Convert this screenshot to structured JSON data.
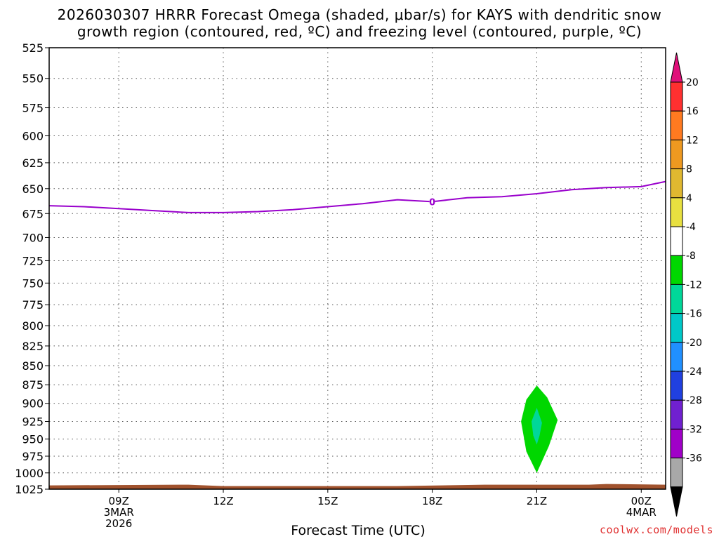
{
  "title_line1": "2026030307 HRRR Forecast Omega (shaded, μbar/s) for KAYS with dendritic snow",
  "title_line2": "growth region (contoured, red, ºC) and freezing level (contoured, purple, ºC)",
  "xaxis_title": "Forecast Time (UTC)",
  "credit": "coolwx.com/models",
  "chart_data": {
    "type": "area",
    "title": "2026030307 HRRR Forecast Omega (shaded, μbar/s) for KAYS with dendritic snow growth region (contoured, red, ºC) and freezing level (contoured, purple, ºC)",
    "xlabel": "Forecast Time (UTC)",
    "ylabel": "",
    "x_hours_range": [
      7,
      24.7
    ],
    "y_range_hpa": [
      525,
      1025
    ],
    "y_scale": "log-pressure (inverted)",
    "grid": true,
    "y_ticks": [
      "525",
      "550",
      "575",
      "600",
      "625",
      "650",
      "675",
      "700",
      "725",
      "750",
      "775",
      "800",
      "825",
      "850",
      "875",
      "900",
      "925",
      "950",
      "975",
      "1000",
      "1025"
    ],
    "x_ticks": [
      {
        "hour": 9,
        "label": "09Z",
        "sub1": "3MAR",
        "sub2": "2026"
      },
      {
        "hour": 12,
        "label": "12Z",
        "sub1": "",
        "sub2": ""
      },
      {
        "hour": 15,
        "label": "15Z",
        "sub1": "",
        "sub2": ""
      },
      {
        "hour": 18,
        "label": "18Z",
        "sub1": "",
        "sub2": ""
      },
      {
        "hour": 21,
        "label": "21Z",
        "sub1": "",
        "sub2": ""
      },
      {
        "hour": 24,
        "label": "00Z",
        "sub1": "4MAR",
        "sub2": ""
      }
    ],
    "freezing_level": {
      "color": "#9900cc",
      "label": "0",
      "label_hour": 18,
      "points": [
        [
          7,
          667
        ],
        [
          8,
          668
        ],
        [
          9,
          670
        ],
        [
          10,
          672
        ],
        [
          11,
          674
        ],
        [
          12,
          674
        ],
        [
          13,
          673
        ],
        [
          14,
          671
        ],
        [
          15,
          668
        ],
        [
          16,
          665
        ],
        [
          17,
          661
        ],
        [
          18,
          663
        ],
        [
          19,
          659
        ],
        [
          20,
          658
        ],
        [
          21,
          655
        ],
        [
          22,
          651
        ],
        [
          23,
          649
        ],
        [
          24,
          648
        ],
        [
          24.7,
          643
        ]
      ]
    },
    "omega_regions": [
      {
        "level": "-8 to -4",
        "color": "#00d700",
        "points": [
          [
            21,
            876
          ],
          [
            21.3,
            892
          ],
          [
            21.6,
            923
          ],
          [
            21.35,
            960
          ],
          [
            21,
            1000
          ],
          [
            20.7,
            968
          ],
          [
            20.55,
            925
          ],
          [
            20.7,
            895
          ]
        ]
      },
      {
        "level": "-12 to -8",
        "color": "#00d799",
        "points": [
          [
            21,
            906
          ],
          [
            21.15,
            927
          ],
          [
            21.08,
            945
          ],
          [
            21,
            958
          ],
          [
            20.9,
            945
          ],
          [
            20.85,
            925
          ]
        ]
      }
    ],
    "terrain": {
      "color": "#a0522d",
      "surface_hpa": 1018
    },
    "colorbar": {
      "labels": [
        "20",
        "16",
        "12",
        "8",
        "4",
        "-4",
        "-8",
        "-12",
        "-16",
        "-20",
        "-24",
        "-28",
        "-32",
        "-36"
      ],
      "colors": [
        "#ff3030",
        "#ff7a20",
        "#ee9920",
        "#e0b830",
        "#e8e040",
        "#ffffff",
        "#00d700",
        "#00d799",
        "#00c8c8",
        "#2090ff",
        "#2040e0",
        "#7020d0",
        "#a000c8",
        "#a8a8a8"
      ],
      "top_arrow_color": "#e0107a",
      "bottom_arrow_color": "#000000"
    }
  }
}
